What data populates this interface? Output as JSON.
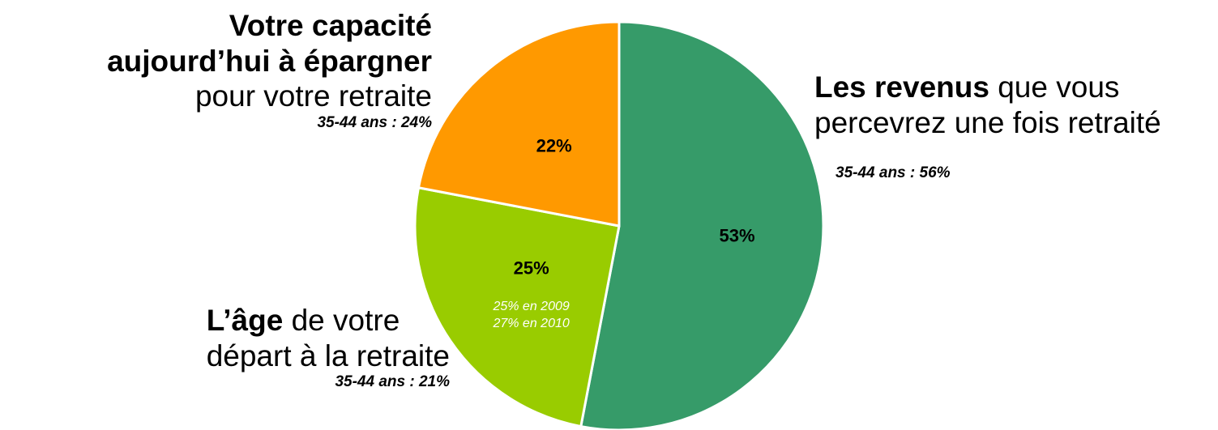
{
  "chart_data": {
    "type": "pie",
    "slices": [
      {
        "value": 53,
        "value_label": "53%",
        "color": "#369b69",
        "label_bold": "Les revenus",
        "label_rest": "que vous",
        "label_line2": "percevrez une fois retraité",
        "sub_label": "35-44 ans : 56%",
        "notes": []
      },
      {
        "value": 25,
        "value_label": "25%",
        "color": "#99cc00",
        "label_bold": "L’âge",
        "label_rest": "de votre",
        "label_line2": "départ à la retraite",
        "sub_label": "35-44 ans : 21%",
        "notes": [
          "25% en 2009",
          "27% en 2010"
        ]
      },
      {
        "value": 22,
        "value_label": "22%",
        "color": "#ff9900",
        "label_bold_line1": "Votre capacité",
        "label_bold_line2": "aujourd’hui à épargner",
        "label_line3": "pour votre retraite",
        "sub_label": "35-44 ans : 24%",
        "notes": []
      }
    ]
  }
}
